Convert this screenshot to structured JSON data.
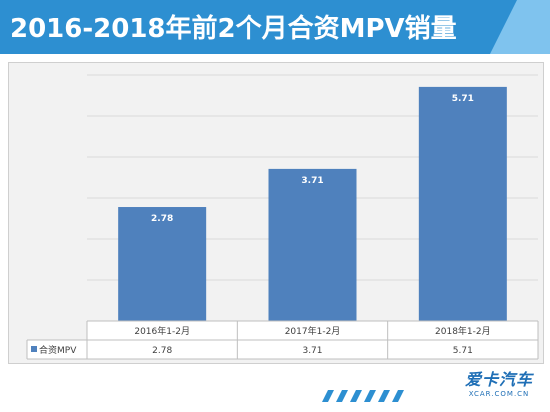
{
  "header": {
    "title": "2016-2018年前2个月合资MPV销量"
  },
  "chart_data": {
    "type": "bar",
    "title": "",
    "categories": [
      "2016年1-2月",
      "2017年1-2月",
      "2018年1-2月"
    ],
    "series": [
      {
        "name": "合资MPV",
        "values": [
          2.78,
          3.71,
          5.71
        ]
      }
    ],
    "data_labels": [
      "2.78",
      "3.71",
      "5.71"
    ],
    "ylim": [
      0,
      6
    ],
    "grid": true,
    "legend": "table-left",
    "colors": {
      "bar": "#4f81bd",
      "grid": "#d9d9d9"
    }
  },
  "logo": {
    "main": "爱卡汽车",
    "sub": "XCAR.COM.CN"
  },
  "colors": {
    "banner": "#2d8fd1",
    "accent": "#7fc3ee"
  }
}
